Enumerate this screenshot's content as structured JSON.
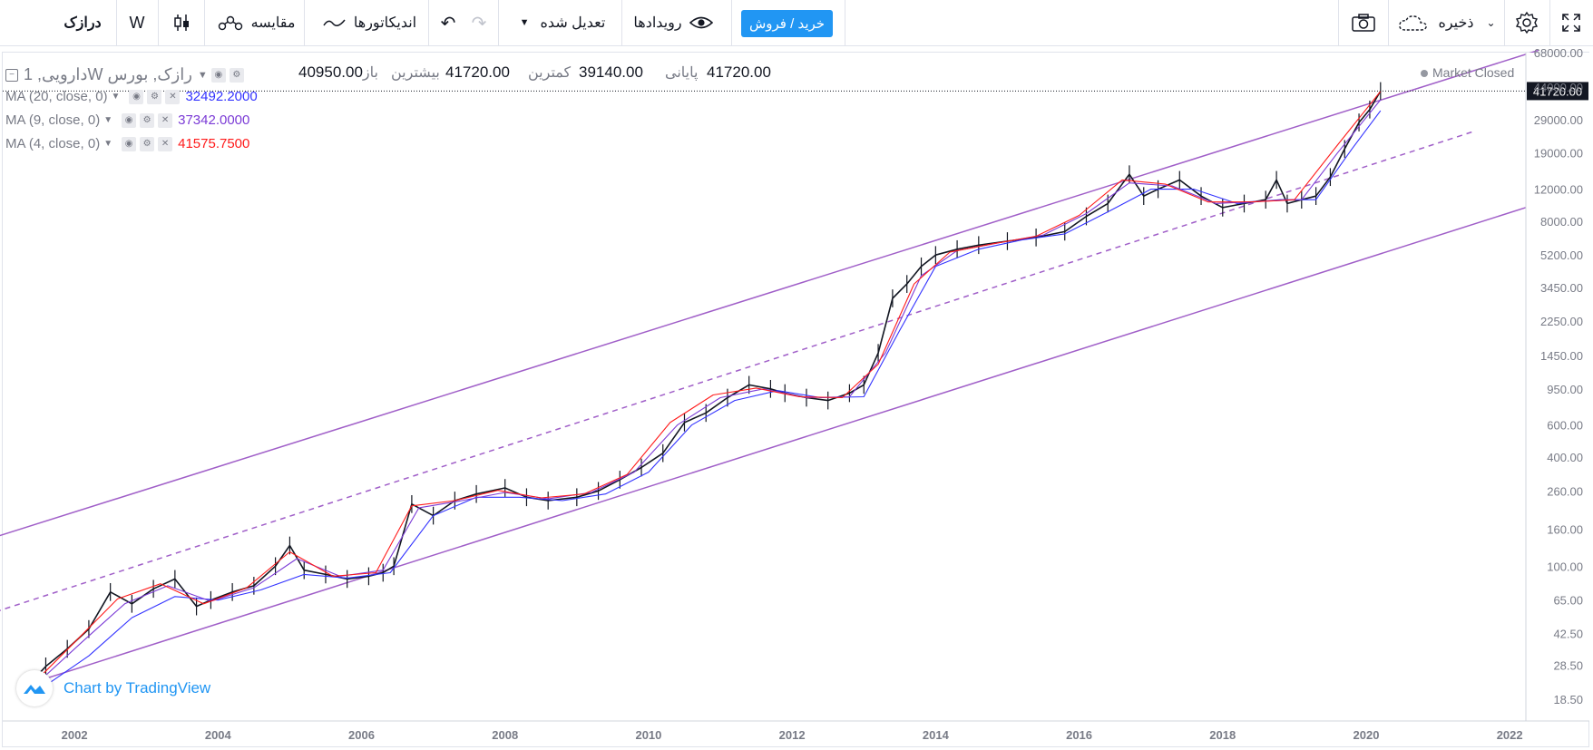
{
  "toolbar": {
    "symbol": "درازک",
    "interval": "W",
    "compare_label": "مقایسه",
    "indicators_label": "اندیکاتورها",
    "adjustment_label": "تعدیل شده",
    "events_label": "رویدادها",
    "buy_sell_label": "خرید / فروش",
    "save_label": "ذخیره",
    "accent_color": "#2196f3"
  },
  "legend": {
    "title": "1 ,داروییW رازک, بورس",
    "open_label": "باز",
    "open_value": "40950.00",
    "high_label": "بیشترین",
    "high_value": "41720.00",
    "low_label": "کمترین",
    "low_value": "39140.00",
    "close_label": "پایانی",
    "close_value": "41720.00",
    "market_status": "Market Closed",
    "ma": [
      {
        "label": "MA (20, close, 0)",
        "value": "32492.2000",
        "color": "#3333ff"
      },
      {
        "label": "MA (9, close, 0)",
        "value": "37342.0000",
        "color": "#7b3bd6"
      },
      {
        "label": "MA (4, close, 0)",
        "value": "41575.7500",
        "color": "#ff1a1a"
      }
    ]
  },
  "watermark": {
    "text": "Chart by TradingView"
  },
  "chart_data": {
    "type": "line",
    "title": "1 ,داروییW رازک, بورس",
    "scale": "log",
    "ylim": [
      14,
      68000
    ],
    "xlim": [
      2001.0,
      2022.2
    ],
    "x_ticks": [
      "2002",
      "2004",
      "2006",
      "2008",
      "2010",
      "2012",
      "2014",
      "2016",
      "2018",
      "2020",
      "2022"
    ],
    "y_ticks": [
      68000,
      44000,
      29000,
      19000,
      12000,
      8000,
      5200,
      3450,
      2250,
      1450,
      950,
      600,
      400,
      260,
      160,
      100,
      65,
      42.5,
      28.5,
      18.5
    ],
    "y_tick_labels": [
      "68000.00",
      "44000.00",
      "29000.00",
      "19000.00",
      "12000.00",
      "8000.00",
      "5200.00",
      "3450.00",
      "2250.00",
      "1450.00",
      "950.00",
      "600.00",
      "400.00",
      "260.00",
      "160.00",
      "100.00",
      "65.00",
      "42.50",
      "28.50",
      "18.50"
    ],
    "last_price": 41720,
    "last_price_label": "41720.00",
    "grid": false,
    "series": [
      {
        "name": "",
        "color": "#131722",
        "x": [
          2001.35,
          2001.6,
          2001.9,
          2002.2,
          2002.5,
          2002.8,
          2003.1,
          2003.4,
          2003.7,
          2003.9,
          2004.2,
          2004.5,
          2004.8,
          2005.0,
          2005.2,
          2005.5,
          2005.8,
          2006.1,
          2006.3,
          2006.45,
          2006.7,
          2007.0,
          2007.3,
          2007.6,
          2008.0,
          2008.3,
          2008.6,
          2009.0,
          2009.3,
          2009.6,
          2009.9,
          2010.2,
          2010.5,
          2010.8,
          2011.1,
          2011.4,
          2011.7,
          2011.9,
          2012.2,
          2012.5,
          2012.8,
          2013.0,
          2013.2,
          2013.4,
          2013.6,
          2013.8,
          2014.0,
          2014.3,
          2014.6,
          2015.0,
          2015.4,
          2015.8,
          2016.1,
          2016.4,
          2016.7,
          2016.9,
          2017.1,
          2017.4,
          2017.7,
          2018.0,
          2018.3,
          2018.6,
          2018.75,
          2018.9,
          2019.1,
          2019.3,
          2019.5,
          2019.7,
          2019.9,
          2020.05,
          2020.2
        ],
        "values": [
          22,
          28,
          35,
          45,
          72,
          62,
          75,
          85,
          60,
          65,
          72,
          78,
          100,
          130,
          95,
          90,
          85,
          88,
          92,
          100,
          220,
          190,
          230,
          250,
          270,
          240,
          230,
          240,
          260,
          300,
          350,
          420,
          620,
          700,
          850,
          1000,
          950,
          900,
          850,
          820,
          900,
          1000,
          1500,
          3000,
          3600,
          4500,
          5200,
          5600,
          5900,
          6200,
          6500,
          7000,
          8500,
          10000,
          14500,
          11000,
          12000,
          13500,
          11000,
          9500,
          10000,
          10500,
          13500,
          10000,
          10500,
          11000,
          14000,
          20000,
          28000,
          33000,
          41720
        ]
      },
      {
        "name": "MA (20, close, 0)",
        "color": "#3333ff",
        "x": [
          2001.6,
          2002.2,
          2002.8,
          2003.4,
          2004.0,
          2004.6,
          2005.2,
          2005.8,
          2006.4,
          2007.0,
          2007.6,
          2008.2,
          2008.8,
          2009.4,
          2010.0,
          2010.6,
          2011.2,
          2011.8,
          2012.4,
          2013.0,
          2013.5,
          2014.0,
          2014.6,
          2015.2,
          2015.8,
          2016.4,
          2017.0,
          2017.6,
          2018.2,
          2018.8,
          2019.3,
          2019.8,
          2020.2
        ],
        "values": [
          22,
          32,
          52,
          68,
          65,
          74,
          90,
          86,
          92,
          190,
          240,
          240,
          230,
          250,
          330,
          600,
          820,
          930,
          850,
          860,
          2000,
          4500,
          5600,
          6300,
          6800,
          9000,
          12000,
          12000,
          10000,
          10500,
          10500,
          20000,
          32492
        ]
      },
      {
        "name": "MA (9, close, 0)",
        "color": "#7b3bd6",
        "x": [
          2001.5,
          2002.1,
          2002.7,
          2003.3,
          2003.9,
          2004.5,
          2005.1,
          2005.7,
          2006.3,
          2006.8,
          2007.4,
          2008.0,
          2008.6,
          2009.2,
          2009.8,
          2010.4,
          2011.0,
          2011.6,
          2012.2,
          2012.8,
          2013.3,
          2013.8,
          2014.3,
          2014.9,
          2015.5,
          2016.1,
          2016.7,
          2017.3,
          2017.9,
          2018.5,
          2019.1,
          2019.6,
          2020.2
        ],
        "values": [
          23,
          38,
          62,
          78,
          64,
          76,
          110,
          88,
          95,
          210,
          230,
          255,
          235,
          255,
          330,
          600,
          850,
          950,
          850,
          860,
          1500,
          4000,
          5500,
          6100,
          6700,
          8800,
          13000,
          12500,
          10000,
          10300,
          10500,
          19000,
          37342
        ]
      },
      {
        "name": "MA (4, close, 0)",
        "color": "#ff1a1a",
        "x": [
          2001.4,
          2002.0,
          2002.6,
          2003.2,
          2003.8,
          2004.4,
          2005.0,
          2005.6,
          2006.2,
          2006.7,
          2007.3,
          2007.9,
          2008.5,
          2009.1,
          2009.7,
          2010.3,
          2010.9,
          2011.5,
          2012.1,
          2012.7,
          2013.2,
          2013.7,
          2014.2,
          2014.8,
          2015.4,
          2016.0,
          2016.6,
          2017.2,
          2017.8,
          2018.4,
          2019.0,
          2019.6,
          2020.2
        ],
        "values": [
          22,
          38,
          66,
          80,
          62,
          76,
          120,
          88,
          92,
          215,
          230,
          262,
          238,
          250,
          320,
          620,
          880,
          960,
          860,
          850,
          1300,
          3600,
          5400,
          6000,
          6600,
          8600,
          13500,
          12800,
          10200,
          10200,
          10500,
          21000,
          41575
        ]
      }
    ],
    "channel": {
      "color": "#a05fc8",
      "upper": {
        "x": [
          2000.9,
          2022.4
        ],
        "values": [
          145,
          70000
        ]
      },
      "middle": {
        "x": [
          2000.9,
          2021.5
        ],
        "values": [
          56,
          25000
        ]
      },
      "lower": {
        "x": [
          2001.3,
          2022.4
        ],
        "values": [
          22,
          10000
        ]
      }
    }
  }
}
